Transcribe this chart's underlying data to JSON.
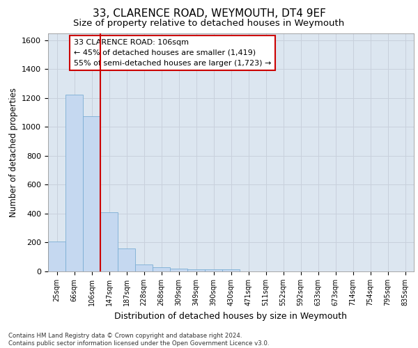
{
  "title1": "33, CLARENCE ROAD, WEYMOUTH, DT4 9EF",
  "title2": "Size of property relative to detached houses in Weymouth",
  "xlabel": "Distribution of detached houses by size in Weymouth",
  "ylabel": "Number of detached properties",
  "footnote": "Contains HM Land Registry data © Crown copyright and database right 2024.\nContains public sector information licensed under the Open Government Licence v3.0.",
  "bin_labels": [
    "25sqm",
    "66sqm",
    "106sqm",
    "147sqm",
    "187sqm",
    "228sqm",
    "268sqm",
    "309sqm",
    "349sqm",
    "390sqm",
    "430sqm",
    "471sqm",
    "511sqm",
    "552sqm",
    "592sqm",
    "633sqm",
    "673sqm",
    "714sqm",
    "754sqm",
    "795sqm",
    "835sqm"
  ],
  "bar_values": [
    205,
    1225,
    1075,
    410,
    160,
    50,
    28,
    20,
    15,
    15,
    15,
    0,
    0,
    0,
    0,
    0,
    0,
    0,
    0,
    0,
    0
  ],
  "bar_color": "#c5d8f0",
  "bar_edge_color": "#7aadd4",
  "subject_bin_index": 2,
  "annotation_box_text": "33 CLARENCE ROAD: 106sqm\n← 45% of detached houses are smaller (1,419)\n55% of semi-detached houses are larger (1,723) →",
  "annotation_box_color": "#cc0000",
  "ylim": [
    0,
    1650
  ],
  "yticks": [
    0,
    200,
    400,
    600,
    800,
    1000,
    1200,
    1400,
    1600
  ],
  "grid_color": "#c8d0dc",
  "bg_color": "#dce6f0",
  "title1_fontsize": 11,
  "title2_fontsize": 9.5
}
